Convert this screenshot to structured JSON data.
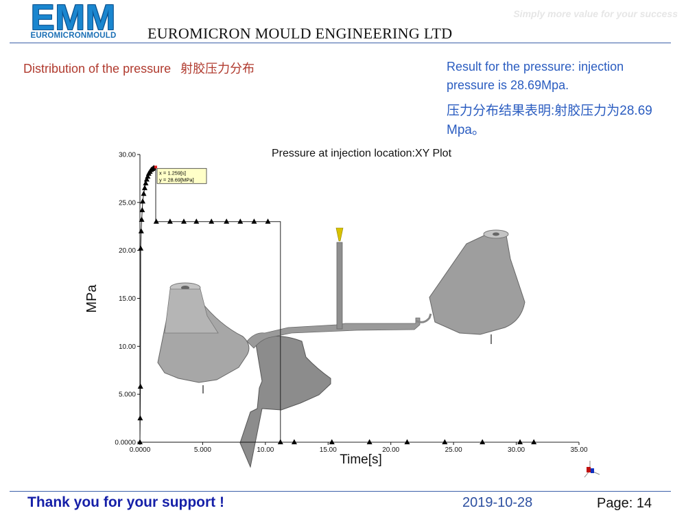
{
  "header": {
    "logo_text": "EMM",
    "logo_subtext": "EUROMICRONMOULD",
    "company": "EUROMICRON MOULD  ENGINEERING LTD",
    "tagline": "Simply  more value for your success"
  },
  "slide": {
    "title_en": "Distribution of the pressure",
    "title_cn": "射胶压力分布",
    "result_en": "Result for the pressure: injection pressure is 28.69Mpa.",
    "result_cn": "压力分布结果表明:射胶压力为28.69 Mpa。"
  },
  "chart_data": {
    "type": "line",
    "title": "Pressure at injection location:XY Plot",
    "xlabel": "Time[s]",
    "ylabel": "MPa",
    "xlim": [
      0,
      35
    ],
    "ylim": [
      0,
      30
    ],
    "xticks": [
      "0.0000",
      "5.000",
      "10.00",
      "15.00",
      "20.00",
      "25.00",
      "30.00",
      "35.00"
    ],
    "yticks": [
      "0.0000",
      "5.000",
      "10.00",
      "15.00",
      "20.00",
      "25.00",
      "30.00"
    ],
    "series": [
      {
        "x": [
          0,
          0.02,
          0.04,
          0.06,
          0.1,
          0.14,
          0.18,
          0.22,
          0.3,
          0.38,
          0.46,
          0.54,
          0.62,
          0.7,
          0.8,
          0.9,
          1.0,
          1.1,
          1.18,
          1.259,
          1.259,
          11.2,
          11.2,
          35
        ],
        "y": [
          0,
          2.5,
          5.8,
          20.2,
          22.0,
          23.2,
          24.2,
          25.1,
          25.9,
          26.5,
          27.0,
          27.4,
          27.7,
          28.0,
          28.2,
          28.4,
          28.5,
          28.6,
          28.65,
          28.69,
          23.0,
          23.0,
          0,
          0
        ]
      }
    ],
    "markers": [
      {
        "x": 0,
        "y": 0
      },
      {
        "x": 0.02,
        "y": 2.5
      },
      {
        "x": 0.04,
        "y": 5.8
      },
      {
        "x": 0.06,
        "y": 20.2
      },
      {
        "x": 0.1,
        "y": 22.0
      },
      {
        "x": 0.14,
        "y": 23.2
      },
      {
        "x": 0.18,
        "y": 24.2
      },
      {
        "x": 0.22,
        "y": 25.1
      },
      {
        "x": 0.3,
        "y": 25.9
      },
      {
        "x": 0.38,
        "y": 26.5
      },
      {
        "x": 0.46,
        "y": 27.0
      },
      {
        "x": 0.54,
        "y": 27.4
      },
      {
        "x": 0.62,
        "y": 27.7
      },
      {
        "x": 0.7,
        "y": 28.0
      },
      {
        "x": 0.8,
        "y": 28.2
      },
      {
        "x": 0.9,
        "y": 28.4
      },
      {
        "x": 1.0,
        "y": 28.5
      },
      {
        "x": 1.1,
        "y": 28.6
      },
      {
        "x": 1.3,
        "y": 23.0
      },
      {
        "x": 2.4,
        "y": 23.0
      },
      {
        "x": 3.5,
        "y": 23.0
      },
      {
        "x": 4.5,
        "y": 23.0
      },
      {
        "x": 5.7,
        "y": 23.0
      },
      {
        "x": 6.9,
        "y": 23.0
      },
      {
        "x": 8.0,
        "y": 23.0
      },
      {
        "x": 9.1,
        "y": 23.0
      },
      {
        "x": 10.2,
        "y": 23.0
      },
      {
        "x": 11.2,
        "y": 0
      },
      {
        "x": 12.3,
        "y": 0
      },
      {
        "x": 15.3,
        "y": 0
      },
      {
        "x": 18.3,
        "y": 0
      },
      {
        "x": 21.3,
        "y": 0
      },
      {
        "x": 24.3,
        "y": 0
      },
      {
        "x": 27.3,
        "y": 0
      },
      {
        "x": 30.3,
        "y": 0
      },
      {
        "x": 31.4,
        "y": 0
      }
    ],
    "annotation": {
      "x": 1.259,
      "y": 28.69,
      "line1": "x = 1.259[s]",
      "line2": "y = 28.69[MPa]"
    }
  },
  "footer": {
    "thanks": "Thank you for your support !",
    "date": "2019-10-28",
    "page": "Page: 14"
  },
  "colors": {
    "rule": "#3a5ea8",
    "title_red": "#b03a2e",
    "result_blue": "#2a5cc0",
    "footer_blue": "#1620a8"
  }
}
